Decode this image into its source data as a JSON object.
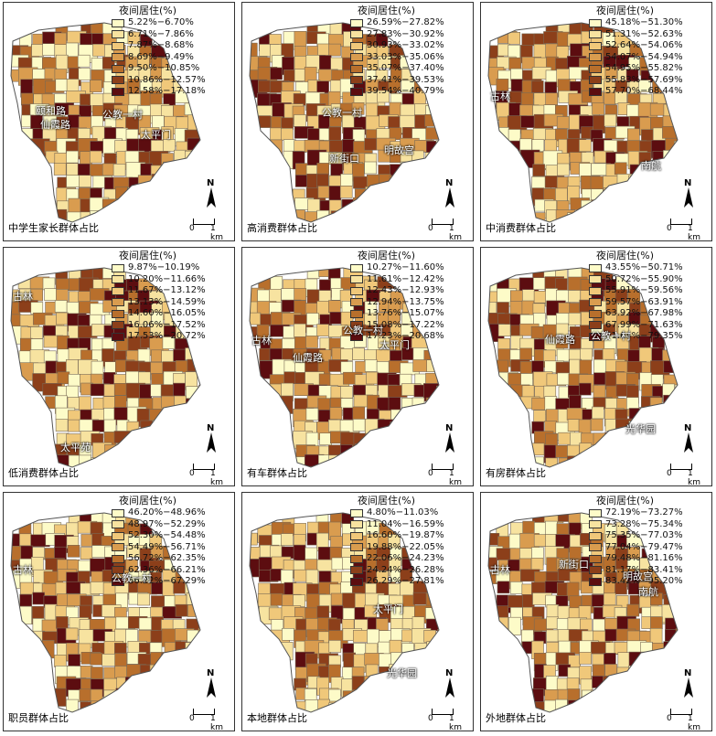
{
  "legend_title": "夜间居住(%)",
  "colors": [
    "#fdfbc8",
    "#f7e3a0",
    "#f0c87a",
    "#d99c4f",
    "#b86f2c",
    "#8c3f1a",
    "#5c0d10"
  ],
  "north_label": "N",
  "scale": {
    "start": "0",
    "end": "1 km"
  },
  "panels": [
    {
      "title": "中学生家长群体占比",
      "classes": [
        "5.22%−6.70%",
        "6.71%−7.86%",
        "7.87%−8.68%",
        "8.69%−9.49%",
        "9.50%−10.85%",
        "10.86%−12.57%",
        "12.58%−17.18%"
      ],
      "labels": [
        {
          "text": "颐和路"
        },
        {
          "text": "仙霞路"
        },
        {
          "text": "公教一村"
        },
        {
          "text": "太平门"
        }
      ]
    },
    {
      "title": "高消费群体占比",
      "classes": [
        "26.59%−27.82%",
        "27.83%−30.92%",
        "30.93%−33.02%",
        "33.03%−35.06%",
        "35.07%−37.40%",
        "37.41%−39.53%",
        "39.54%−40.79%"
      ],
      "labels": [
        {
          "text": "公教一村"
        },
        {
          "text": "新街口"
        },
        {
          "text": "明故宫"
        }
      ]
    },
    {
      "title": "中消费群体占比",
      "classes": [
        "45.18%−51.30%",
        "51.31%−52.63%",
        "52.64%−54.06%",
        "54.07%−54.94%",
        "54.95%−55.82%",
        "55.83%−57.69%",
        "57.70%−68.44%"
      ],
      "labels": [
        {
          "text": "古林"
        },
        {
          "text": "南航"
        }
      ]
    },
    {
      "title": "低消费群体占比",
      "classes": [
        "9.87%−10.19%",
        "10.20%−11.66%",
        "11.67%−13.12%",
        "13.13%−14.59%",
        "14.60%−16.05%",
        "16.06%−17.52%",
        "17.53%−20.72%"
      ],
      "labels": [
        {
          "text": "古林"
        },
        {
          "text": "太平苑"
        }
      ]
    },
    {
      "title": "有车群体占比",
      "classes": [
        "10.27%−11.60%",
        "11.61%−12.42%",
        "12.43%−12.93%",
        "12.94%−13.75%",
        "13.76%−15.07%",
        "15.08%−17.22%",
        "17.23%−20.68%"
      ],
      "labels": [
        {
          "text": "古林"
        },
        {
          "text": "仙霞路"
        },
        {
          "text": "公教一村"
        },
        {
          "text": "太平门"
        }
      ]
    },
    {
      "title": "有房群体占比",
      "classes": [
        "43.55%−50.71%",
        "50.72%−55.90%",
        "55.91%−59.56%",
        "59.57%−63.91%",
        "63.92%−67.98%",
        "67.99%−71.63%",
        "71.64%−79.35%"
      ],
      "labels": [
        {
          "text": "仙霞路"
        },
        {
          "text": "公教一村"
        },
        {
          "text": "光华园"
        }
      ]
    },
    {
      "title": "职员群体占比",
      "classes": [
        "46.20%−48.96%",
        "48.97%−52.29%",
        "52.30%−54.48%",
        "54.49%−56.71%",
        "56.72%−62.35%",
        "62.36%−66.21%",
        "66.22%−67.29%"
      ],
      "labels": [
        {
          "text": "古林"
        },
        {
          "text": "公教一村"
        }
      ]
    },
    {
      "title": "本地群体占比",
      "classes": [
        "4.80%−11.03%",
        "11.04%−16.59%",
        "16.60%−19.87%",
        "19.88%−22.05%",
        "22.06%−24.23%",
        "24.24%−26.28%",
        "26.29%−27.81%"
      ],
      "labels": [
        {
          "text": "太平门"
        },
        {
          "text": "光华园"
        }
      ]
    },
    {
      "title": "外地群体占比",
      "classes": [
        "72.19%−73.27%",
        "73.28%−75.34%",
        "75.35%−77.03%",
        "77.04%−79.47%",
        "79.48%−81.16%",
        "81.17%−83.41%",
        "83.42%−95.20%"
      ],
      "labels": [
        {
          "text": "古林"
        },
        {
          "text": "新街口"
        },
        {
          "text": "明故宫"
        },
        {
          "text": "南航"
        }
      ]
    }
  ]
}
